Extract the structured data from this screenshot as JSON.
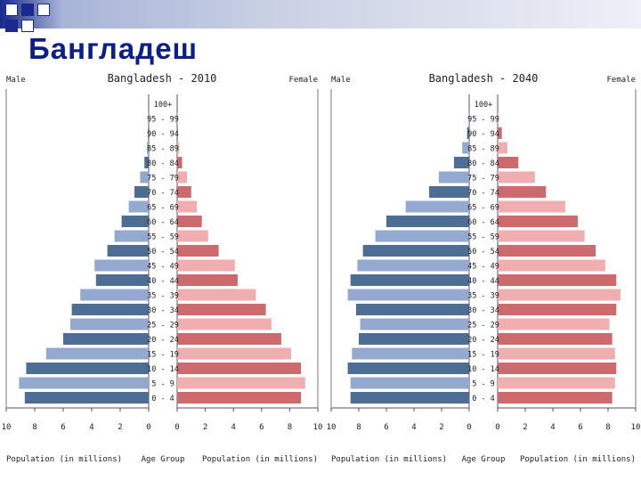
{
  "slide": {
    "title": "Бангладеш",
    "accent_color": "#0b1e8a",
    "deco_colors": [
      "#1a2a8c",
      "#a8b4d8",
      "#c9d0e4"
    ]
  },
  "chart_data": [
    {
      "type": "bar",
      "title": "Bangladesh - 2010",
      "left_header": "Male",
      "right_header": "Female",
      "center_axis_label": "Age Group",
      "xlabel_left": "Population (in millions)",
      "xlabel_right": "Population (in millions)",
      "xlim": [
        0,
        10
      ],
      "ticks": [
        "10",
        "8",
        "6",
        "4",
        "2",
        "0",
        "0",
        "2",
        "4",
        "6",
        "8",
        "10"
      ],
      "categories": [
        "100+",
        "95 - 99",
        "90 - 94",
        "85 - 89",
        "80 - 84",
        "75 - 79",
        "70 - 74",
        "65 - 69",
        "60 - 64",
        "55 - 59",
        "50 - 54",
        "45 - 49",
        "40 - 44",
        "35 - 39",
        "30 - 34",
        "25 - 29",
        "20 - 24",
        "15 - 19",
        "10 - 14",
        "5 - 9",
        "0 - 4"
      ],
      "series": [
        {
          "name": "Male",
          "values": [
            0.0,
            0.02,
            0.05,
            0.12,
            0.3,
            0.6,
            1.0,
            1.4,
            1.9,
            2.4,
            2.9,
            3.8,
            3.7,
            4.8,
            5.4,
            5.5,
            6.0,
            7.2,
            8.6,
            9.1,
            8.7
          ]
        },
        {
          "name": "Female",
          "values": [
            0.0,
            0.02,
            0.05,
            0.15,
            0.35,
            0.7,
            1.0,
            1.4,
            1.75,
            2.2,
            2.95,
            4.1,
            4.3,
            5.6,
            6.3,
            6.7,
            7.4,
            8.1,
            8.8,
            9.1,
            8.8
          ]
        }
      ],
      "colors": {
        "male_even": "#4e6d95",
        "male_odd": "#93a9cf",
        "female_even": "#cc6a6e",
        "female_odd": "#f0aeb1"
      }
    },
    {
      "type": "bar",
      "title": "Bangladesh - 2040",
      "left_header": "Male",
      "right_header": "Female",
      "center_axis_label": "Age Group",
      "xlabel_left": "Population (in millions)",
      "xlabel_right": "Population (in millions)",
      "xlim": [
        0,
        10
      ],
      "ticks": [
        "10",
        "8",
        "6",
        "4",
        "2",
        "0",
        "0",
        "2",
        "4",
        "6",
        "8",
        "10"
      ],
      "categories": [
        "100+",
        "95 - 99",
        "90 - 94",
        "85 - 89",
        "80 - 84",
        "75 - 79",
        "70 - 74",
        "65 - 69",
        "60 - 64",
        "55 - 59",
        "50 - 54",
        "45 - 49",
        "40 - 44",
        "35 - 39",
        "30 - 34",
        "25 - 29",
        "20 - 24",
        "15 - 19",
        "10 - 14",
        "5 - 9",
        "0 - 4"
      ],
      "series": [
        {
          "name": "Male",
          "values": [
            0.0,
            0.03,
            0.15,
            0.5,
            1.1,
            2.2,
            2.9,
            4.6,
            6.0,
            6.8,
            7.7,
            8.1,
            8.6,
            8.8,
            8.2,
            7.9,
            8.0,
            8.5,
            8.8,
            8.6,
            8.6
          ]
        },
        {
          "name": "Female",
          "values": [
            0.0,
            0.06,
            0.3,
            0.7,
            1.5,
            2.7,
            3.5,
            4.9,
            5.8,
            6.3,
            7.1,
            7.8,
            8.6,
            8.9,
            8.6,
            8.1,
            8.3,
            8.5,
            8.6,
            8.5,
            8.3
          ]
        }
      ],
      "colors": {
        "male_even": "#4e6d95",
        "male_odd": "#93a9cf",
        "female_even": "#cc6a6e",
        "female_odd": "#f0aeb1"
      }
    }
  ]
}
